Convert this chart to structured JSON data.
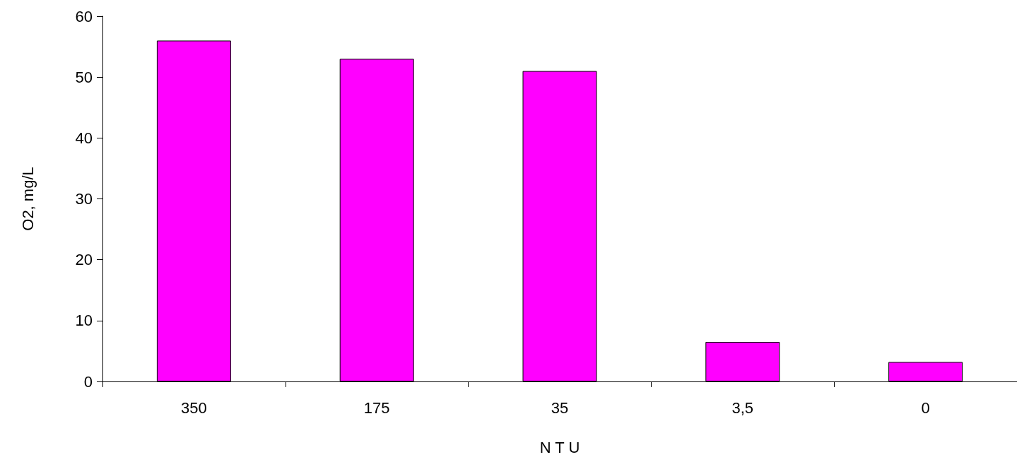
{
  "chart_data": {
    "type": "bar",
    "xlabel": "N T U",
    "ylabel": "O2, mg/L",
    "categories": [
      "350",
      "175",
      "35",
      "3,5",
      "0"
    ],
    "values": [
      56,
      53,
      51,
      6.5,
      3.2
    ],
    "color": "#ff00ff",
    "ylim": [
      0,
      60
    ],
    "yticks": [
      0,
      10,
      20,
      30,
      40,
      50,
      60
    ],
    "grid": false
  }
}
